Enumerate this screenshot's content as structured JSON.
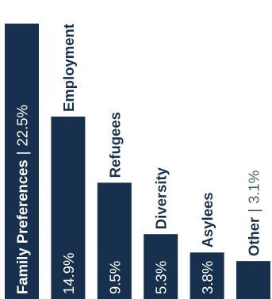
{
  "chart_data": {
    "type": "bar",
    "title": "",
    "xlabel": "",
    "ylabel": "",
    "ylim": [
      0,
      23
    ],
    "grid": false,
    "legend": "none",
    "categories": [
      "Family Preferences",
      "Employment",
      "Refugees",
      "Diversity",
      "Asylees",
      "Other"
    ],
    "values": [
      22.5,
      14.9,
      9.5,
      5.3,
      3.8,
      3.1
    ],
    "value_labels": [
      "22.5%",
      "14.9%",
      "9.5%",
      "5.3%",
      "3.8%",
      "3.1%"
    ],
    "separator": "|",
    "colors": {
      "bar": "#16304d",
      "text_on_bar": "#ffffff",
      "text_dark": "#16304d",
      "text_muted": "#4a5e72"
    }
  }
}
